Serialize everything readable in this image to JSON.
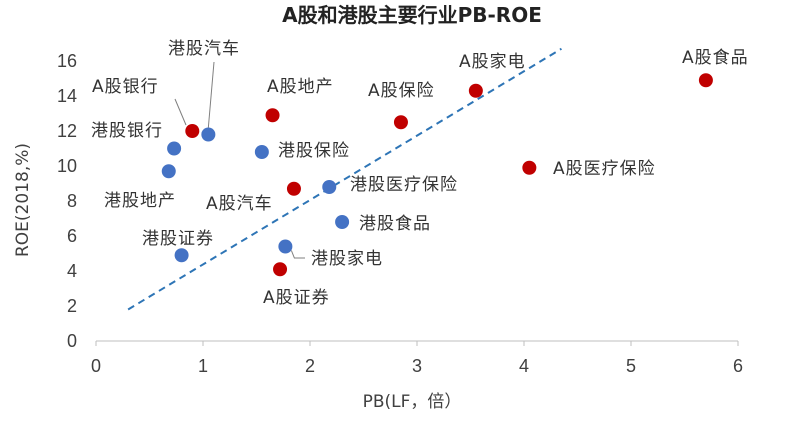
{
  "chart_data": {
    "type": "scatter",
    "title": "A股和港股主要行业PB-ROE",
    "xlabel": "PB(LF，倍）",
    "ylabel": "ROE(2018,%)",
    "xlim": [
      0,
      6
    ],
    "ylim": [
      0,
      16
    ],
    "x_ticks": [
      "0",
      "1",
      "2",
      "3",
      "4",
      "5",
      "6"
    ],
    "y_ticks": [
      "0",
      "2",
      "4",
      "6",
      "8",
      "10",
      "12",
      "14",
      "16"
    ],
    "grid": false,
    "legend": "none",
    "series": [
      {
        "color": "#c00000",
        "points": [
          {
            "label": "A股银行",
            "x": 0.9,
            "y": 12.0
          },
          {
            "label": "A股地产",
            "x": 1.65,
            "y": 12.9
          },
          {
            "label": "A股保险",
            "x": 2.85,
            "y": 12.5
          },
          {
            "label": "A股家电",
            "x": 3.55,
            "y": 14.3
          },
          {
            "label": "A股食品",
            "x": 5.7,
            "y": 14.9
          },
          {
            "label": "A股医疗保险",
            "x": 4.05,
            "y": 9.9
          },
          {
            "label": "A股汽车",
            "x": 1.85,
            "y": 8.7
          },
          {
            "label": "A股证券",
            "x": 1.72,
            "y": 4.1
          }
        ]
      },
      {
        "color": "#4472c4",
        "points": [
          {
            "label": "港股汽车",
            "x": 1.05,
            "y": 11.8
          },
          {
            "label": "港股银行",
            "x": 0.73,
            "y": 11.0
          },
          {
            "label": "港股地产",
            "x": 0.68,
            "y": 9.7
          },
          {
            "label": "港股保险",
            "x": 1.55,
            "y": 10.8
          },
          {
            "label": "港股医疗保险",
            "x": 2.18,
            "y": 8.8
          },
          {
            "label": "港股食品",
            "x": 2.3,
            "y": 6.8
          },
          {
            "label": "港股证券",
            "x": 0.8,
            "y": 4.9
          },
          {
            "label": "港股家电",
            "x": 1.77,
            "y": 5.4
          }
        ]
      }
    ],
    "trendline": {
      "style": "dashed",
      "color": "#2e75b6",
      "from": [
        0.3,
        1.8
      ],
      "to": [
        4.35,
        16.7
      ]
    }
  }
}
